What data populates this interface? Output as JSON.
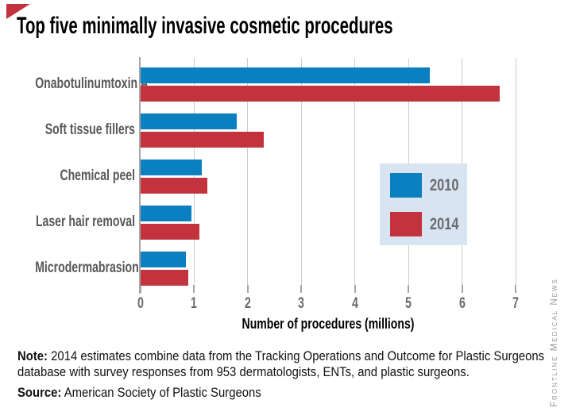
{
  "title": "Top five minimally invasive cosmetic procedures",
  "chart_data": {
    "type": "bar",
    "orientation": "horizontal",
    "title": "Top five minimally invasive cosmetic procedures",
    "categories": [
      "Onabotulinumtoxin A",
      "Soft tissue fillers",
      "Chemical peel",
      "Laser hair removal",
      "Microdermabrasion"
    ],
    "series": [
      {
        "name": "2010",
        "color": "#0b80c1",
        "values": [
          5.4,
          1.8,
          1.15,
          0.95,
          0.85
        ]
      },
      {
        "name": "2014",
        "color": "#c3333e",
        "values": [
          6.7,
          2.3,
          1.25,
          1.1,
          0.9
        ]
      }
    ],
    "xlabel": "Number of procedures (millions)",
    "xticks": [
      "0",
      "1",
      "2",
      "3",
      "4",
      "5",
      "6",
      "7"
    ],
    "xlim": [
      0,
      7
    ],
    "grid": true,
    "legend_position": "middle-right"
  },
  "note": {
    "label": "Note:",
    "text": "2014 estimates combine data from the Tracking Operations and Outcome for Plastic Surgeons database with survey responses from 953 dermatologists, ENTs, and plastic surgeons."
  },
  "source": {
    "label": "Source:",
    "text": "American Society of Plastic Surgeons"
  },
  "credit": "Frontline Medical News",
  "colors": {
    "blue": "#0b80c1",
    "red": "#c3333e",
    "legend_bg": "#d8e4f1",
    "grid": "#cccccc",
    "axis": "#a6a6a6",
    "label_gray": "#58585a",
    "tick_gray": "#6b6b6d",
    "credit_gray": "#999999",
    "triangle": "#c3333e"
  }
}
